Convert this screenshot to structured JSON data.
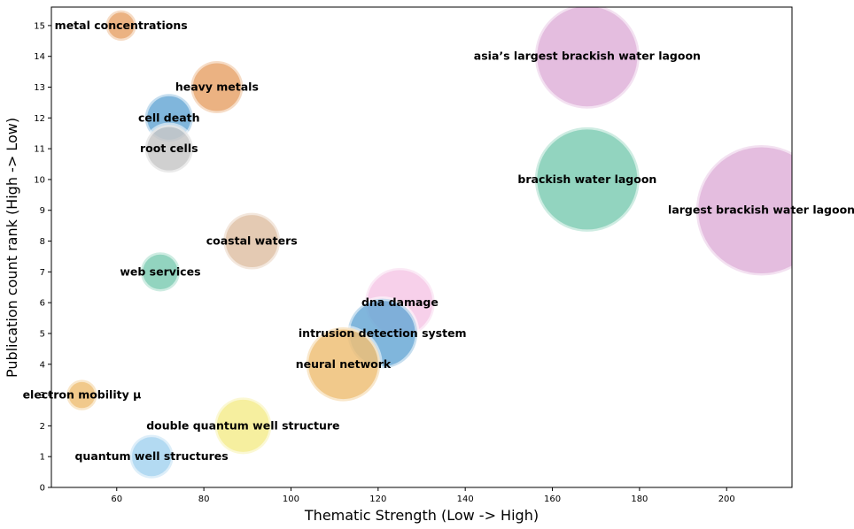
{
  "chart_data": {
    "type": "scatter",
    "title": "",
    "xlabel": "Thematic Strength (Low -> High)",
    "ylabel": "Publication count rank (High -> Low)",
    "xlim": [
      45,
      215
    ],
    "ylim": [
      0,
      15.6
    ],
    "xticks": [
      60,
      80,
      100,
      120,
      140,
      160,
      180,
      200
    ],
    "yticks": [
      0,
      1,
      2,
      3,
      4,
      5,
      6,
      7,
      8,
      9,
      10,
      11,
      12,
      13,
      14,
      15
    ],
    "grid": false,
    "legend": "none",
    "points": [
      {
        "label": "metal concentrations",
        "x": 61,
        "y": 15,
        "size": 7,
        "color": "#e8a46c"
      },
      {
        "label": "asia’s largest brackish water lagoon",
        "x": 168,
        "y": 14,
        "size": 24,
        "color": "#dfb1d9"
      },
      {
        "label": "heavy metals",
        "x": 83,
        "y": 13,
        "size": 12,
        "color": "#e8a46c"
      },
      {
        "label": "cell death",
        "x": 72,
        "y": 12,
        "size": 11,
        "color": "#6aa9d6"
      },
      {
        "label": "root cells",
        "x": 72,
        "y": 11,
        "size": 11,
        "color": "#c8c8c8"
      },
      {
        "label": "brackish water lagoon",
        "x": 168,
        "y": 10,
        "size": 24,
        "color": "#7fcdb4"
      },
      {
        "label": "largest brackish water lagoon",
        "x": 208,
        "y": 9,
        "size": 30,
        "color": "#dfb1d9"
      },
      {
        "label": "coastal waters",
        "x": 91,
        "y": 8,
        "size": 13,
        "color": "#dfc1a6"
      },
      {
        "label": "web services",
        "x": 70,
        "y": 7,
        "size": 9,
        "color": "#7fcdb4"
      },
      {
        "label": "dna damage",
        "x": 125,
        "y": 6,
        "size": 16,
        "color": "#f6c8e6"
      },
      {
        "label": "intrusion detection system",
        "x": 121,
        "y": 5,
        "size": 16,
        "color": "#6aa9d6"
      },
      {
        "label": "neural network",
        "x": 112,
        "y": 4,
        "size": 17,
        "color": "#eec077"
      },
      {
        "label": "electron mobility μ",
        "x": 52,
        "y": 3,
        "size": 7,
        "color": "#eec077"
      },
      {
        "label": "double quantum well structure",
        "x": 89,
        "y": 2,
        "size": 13,
        "color": "#f4ec8e"
      },
      {
        "label": "quantum well structures",
        "x": 68,
        "y": 1,
        "size": 10,
        "color": "#a6d4f0"
      }
    ]
  }
}
